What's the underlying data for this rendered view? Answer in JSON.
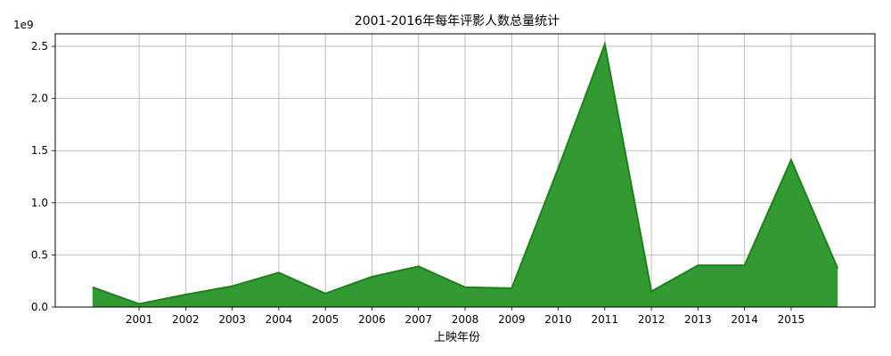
{
  "chart_data": {
    "type": "area",
    "title": "2001-2016年每年评影人数总量统计",
    "xlabel": "上映年份",
    "ylabel": "",
    "y_offset_label": "1e9",
    "x_tick_labels": [
      "2001",
      "2002",
      "2003",
      "2004",
      "2005",
      "2006",
      "2007",
      "2008",
      "2009",
      "2010",
      "2011",
      "2012",
      "2013",
      "2014",
      "2015"
    ],
    "y_ticks": [
      0.0,
      0.5,
      1.0,
      1.5,
      2.0,
      2.5
    ],
    "y_tick_labels": [
      "0.0",
      "0.5",
      "1.0",
      "1.5",
      "2.0",
      "2.5"
    ],
    "ylim": [
      0,
      2.62
    ],
    "xlim": [
      1999.2,
      2016.8
    ],
    "grid": true,
    "series": [
      {
        "x": [
          2000,
          2001,
          2002,
          2003,
          2004,
          2005,
          2006,
          2007,
          2008,
          2009,
          2010,
          2011,
          2012,
          2013,
          2014,
          2015,
          2016
        ],
        "values": [
          0.19,
          0.03,
          0.12,
          0.2,
          0.33,
          0.13,
          0.29,
          0.39,
          0.19,
          0.18,
          1.33,
          2.52,
          0.15,
          0.4,
          0.4,
          1.41,
          0.37
        ],
        "fill_color": "#339933",
        "line_color": "#168516"
      }
    ],
    "colors": {
      "fill": "#339933",
      "line": "#168516",
      "grid": "#b0b0b0",
      "axis": "#000000"
    }
  }
}
